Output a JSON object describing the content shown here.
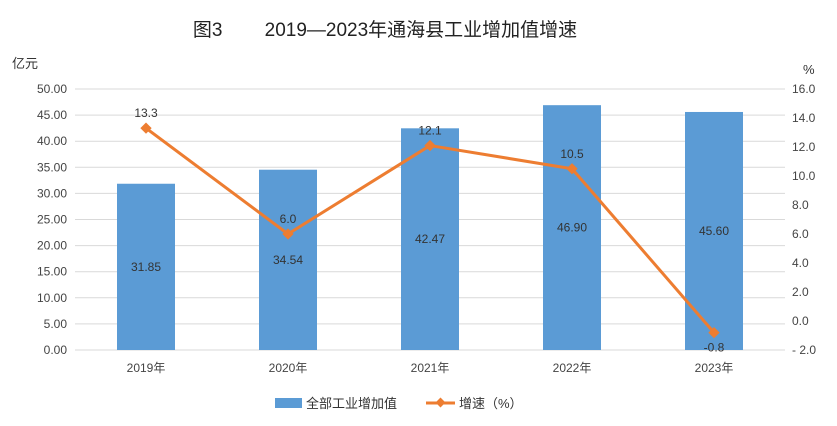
{
  "chart_data": {
    "type": "bar",
    "title": "图3        2019—2023年通海县工业增加值增速",
    "categories": [
      "2019年",
      "2020年",
      "2021年",
      "2022年",
      "2023年"
    ],
    "series": [
      {
        "name": "全部工业增加值",
        "type": "bar",
        "axis": "left",
        "values": [
          31.85,
          34.54,
          42.47,
          46.9,
          45.6
        ],
        "labels": [
          "31.85",
          "34.54",
          "42.47",
          "46.90",
          "45.60"
        ],
        "color": "#5B9BD5"
      },
      {
        "name": "增速（%）",
        "type": "line",
        "axis": "right",
        "values": [
          13.3,
          6.0,
          12.1,
          10.5,
          -0.8
        ],
        "labels": [
          "13.3",
          "6.0",
          "12.1",
          "10.5",
          "-0.8"
        ],
        "color": "#ED7D31"
      }
    ],
    "left_axis": {
      "label": "亿元",
      "ylim": [
        0,
        50
      ],
      "ticks": [
        "0.00",
        "5.00",
        "10.00",
        "15.00",
        "20.00",
        "25.00",
        "30.00",
        "35.00",
        "40.00",
        "45.00",
        "50.00"
      ]
    },
    "right_axis": {
      "label": "%",
      "ylim": [
        -2,
        16
      ],
      "ticks": [
        "-2.0",
        "0.0",
        "2.0",
        "4.0",
        "6.0",
        "8.0",
        "10.0",
        "12.0",
        "14.0",
        "16.0"
      ]
    },
    "grid": true,
    "legend": "bottom"
  }
}
